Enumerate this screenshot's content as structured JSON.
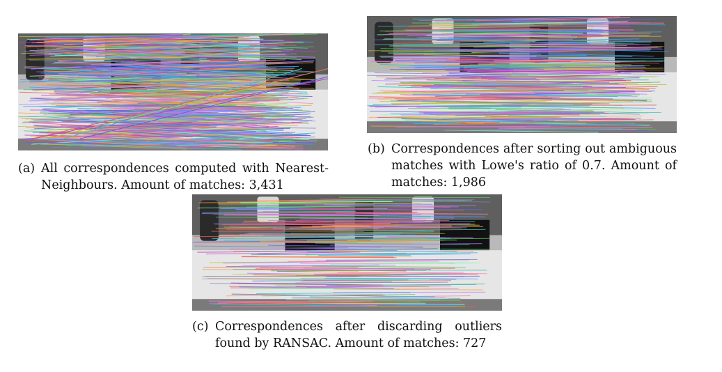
{
  "figures": [
    {
      "id": "a",
      "tag": "(a)",
      "caption": "All correspondences computed with Nearest-Neighbours. Amount of matches: 3,431",
      "line_density": "dense",
      "image_description": "grayscale office scene with chairs, desks and monitors overlaid by feature correspondence lines"
    },
    {
      "id": "b",
      "tag": "(b)",
      "caption": "Correspondences after sorting out ambiguous matches with Lowe's ratio of 0.7. Amount of matches: 1,986",
      "line_density": "medium"
    },
    {
      "id": "c",
      "tag": "(c)",
      "caption": "Correspondences after discarding outliers found by RANSAC. Amount of matches: 727",
      "line_density": "sparse"
    }
  ],
  "colors": {
    "match_palette": [
      "#c040c0",
      "#40c0c0",
      "#c0c040",
      "#6060e0",
      "#e06060",
      "#60c060",
      "#b080ff",
      "#ff80b0",
      "#80ffb0",
      "#8080c0",
      "#ffa040",
      "#40a0ff"
    ],
    "photo_dark": "#1a1a1a",
    "photo_mid": "#8a8a8a",
    "photo_light": "#e8e8e8"
  }
}
